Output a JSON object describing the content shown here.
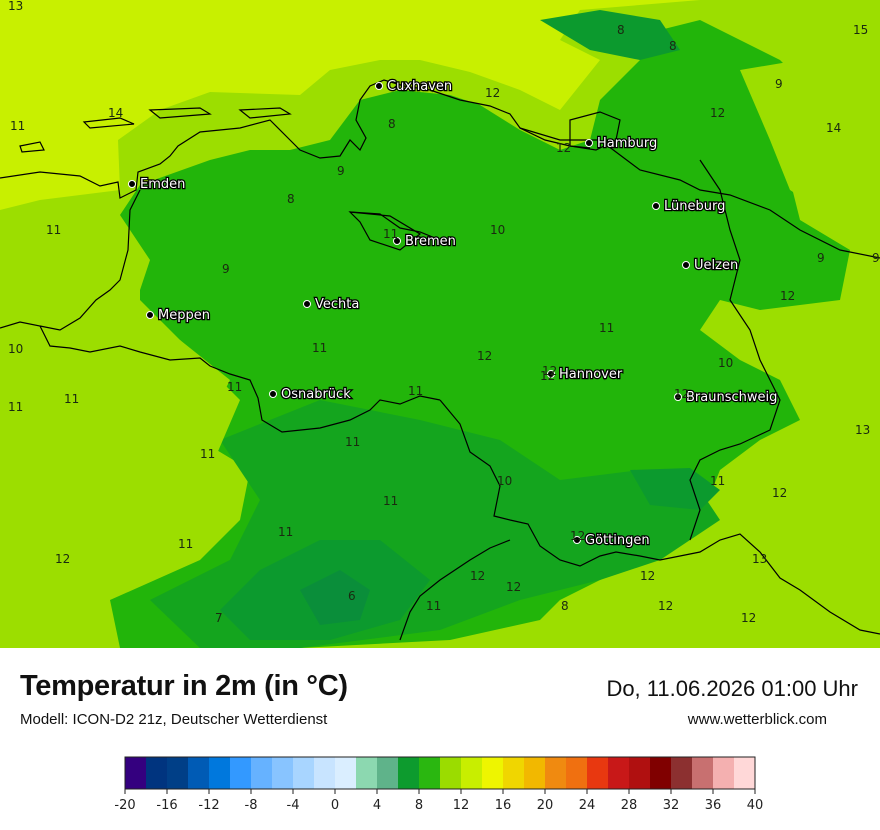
{
  "title": "Temperatur in 2m (in °C)",
  "model": "Modell: ICON-D2 21z, Deutscher Wetterdienst",
  "datetime": "Do, 11.06.2026 01:00 Uhr",
  "site": "www.wetterblick.com",
  "colors": {
    "sea": "#c8f000",
    "warm_fringe": "#9cde00",
    "main": "#22b50a",
    "mid": "#14a51e",
    "cool": "#0c9a2e",
    "coldest": "#0a8e3a",
    "border": "#000000",
    "city_dot": "#000000"
  },
  "cities": [
    {
      "name": "Cuxhaven"
    },
    {
      "name": "Hamburg"
    },
    {
      "name": "Emden"
    },
    {
      "name": "Lüneburg"
    },
    {
      "name": "Bremen"
    },
    {
      "name": "Uelzen"
    },
    {
      "name": "Vechta"
    },
    {
      "name": "Meppen"
    },
    {
      "name": "Hannover"
    },
    {
      "name": "Osnabrück"
    },
    {
      "name": "Braunschweig"
    },
    {
      "name": "Göttingen"
    }
  ],
  "isolines": [
    "13",
    "15",
    "8",
    "8",
    "12",
    "9",
    "12",
    "14",
    "14",
    "8",
    "12",
    "9",
    "8",
    "11",
    "10",
    "11",
    "9",
    "9",
    "9",
    "11",
    "10",
    "11",
    "12",
    "12",
    "10",
    "11",
    "11",
    "11",
    "11",
    "11",
    "13",
    "11",
    "11",
    "10",
    "11",
    "12",
    "11",
    "11",
    "12",
    "13",
    "6",
    "11",
    "12",
    "8",
    "12",
    "7",
    "12",
    "12",
    "12",
    "11",
    "12",
    "12",
    "12",
    "12"
  ],
  "legend": {
    "colors": [
      "#34007f",
      "#00347f",
      "#003f87",
      "#005bb5",
      "#0078dd",
      "#3399ff",
      "#66b2ff",
      "#88c4ff",
      "#a8d5ff",
      "#c8e4ff",
      "#daeeff",
      "#8cd8b0",
      "#5fb38a",
      "#0d9b2e",
      "#2ab710",
      "#9bdc00",
      "#c8ee00",
      "#eef500",
      "#f0d600",
      "#f2b800",
      "#f08a10",
      "#f07010",
      "#e83810",
      "#c81818",
      "#b01010",
      "#800000",
      "#8c3030",
      "#c87070",
      "#f4b0b0",
      "#ffd8d8"
    ],
    "ticks": [
      "-20",
      "-16",
      "-12",
      "-8",
      "-4",
      "0",
      "4",
      "8",
      "12",
      "16",
      "20",
      "24",
      "28",
      "32",
      "36",
      "40"
    ]
  }
}
